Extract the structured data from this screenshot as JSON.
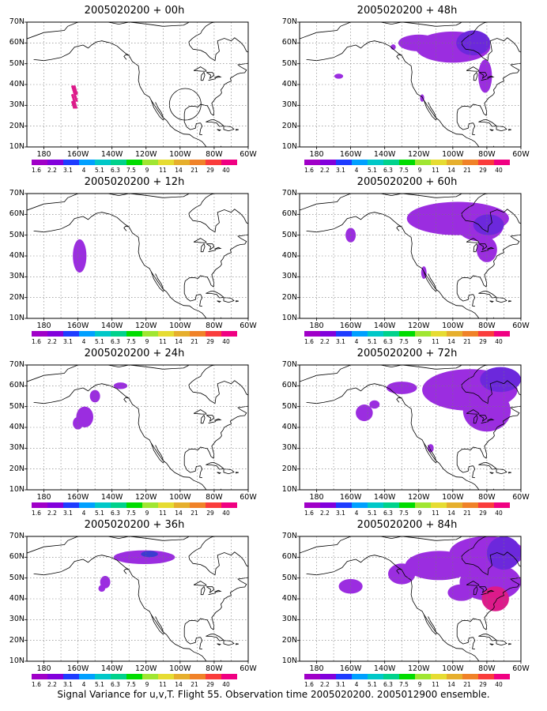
{
  "panels": [
    {
      "title": "2005020200 + 00h",
      "forecast_hour": 0
    },
    {
      "title": "2005020200 + 48h",
      "forecast_hour": 48
    },
    {
      "title": "2005020200 + 12h",
      "forecast_hour": 12
    },
    {
      "title": "2005020200 + 60h",
      "forecast_hour": 60
    },
    {
      "title": "2005020200 + 24h",
      "forecast_hour": 24
    },
    {
      "title": "2005020200 + 72h",
      "forecast_hour": 72
    },
    {
      "title": "2005020200 + 36h",
      "forecast_hour": 36
    },
    {
      "title": "2005020200 + 84h",
      "forecast_hour": 84
    }
  ],
  "map": {
    "lon_range": [
      -190,
      -60
    ],
    "lat_range": [
      10,
      70
    ],
    "lat_labels": [
      "10N",
      "20N",
      "30N",
      "40N",
      "50N",
      "60N",
      "70N"
    ],
    "lon_labels": [
      "180",
      "160W",
      "140W",
      "120W",
      "100W",
      "80W",
      "60W"
    ],
    "grid_style": "dotted",
    "ocean_color": "#ffffff",
    "coast_color": "#000000"
  },
  "colorbar": {
    "labels": [
      "1.6",
      "2.2",
      "3.1",
      "4",
      "5.1",
      "6.3",
      "7.5",
      "9",
      "11",
      "14",
      "21",
      "29",
      "40"
    ],
    "colors": [
      "#a000c8",
      "#8200dc",
      "#1e3cff",
      "#00a0ff",
      "#00c8c8",
      "#00d28c",
      "#00dc00",
      "#a0e632",
      "#e6dc32",
      "#e6af2d",
      "#f08228",
      "#fa3c3c",
      "#f00082"
    ]
  },
  "footer": "Signal Variance for u,v,T. Flight 55. Observation time 2005020200. 2005012900 ensemble."
}
